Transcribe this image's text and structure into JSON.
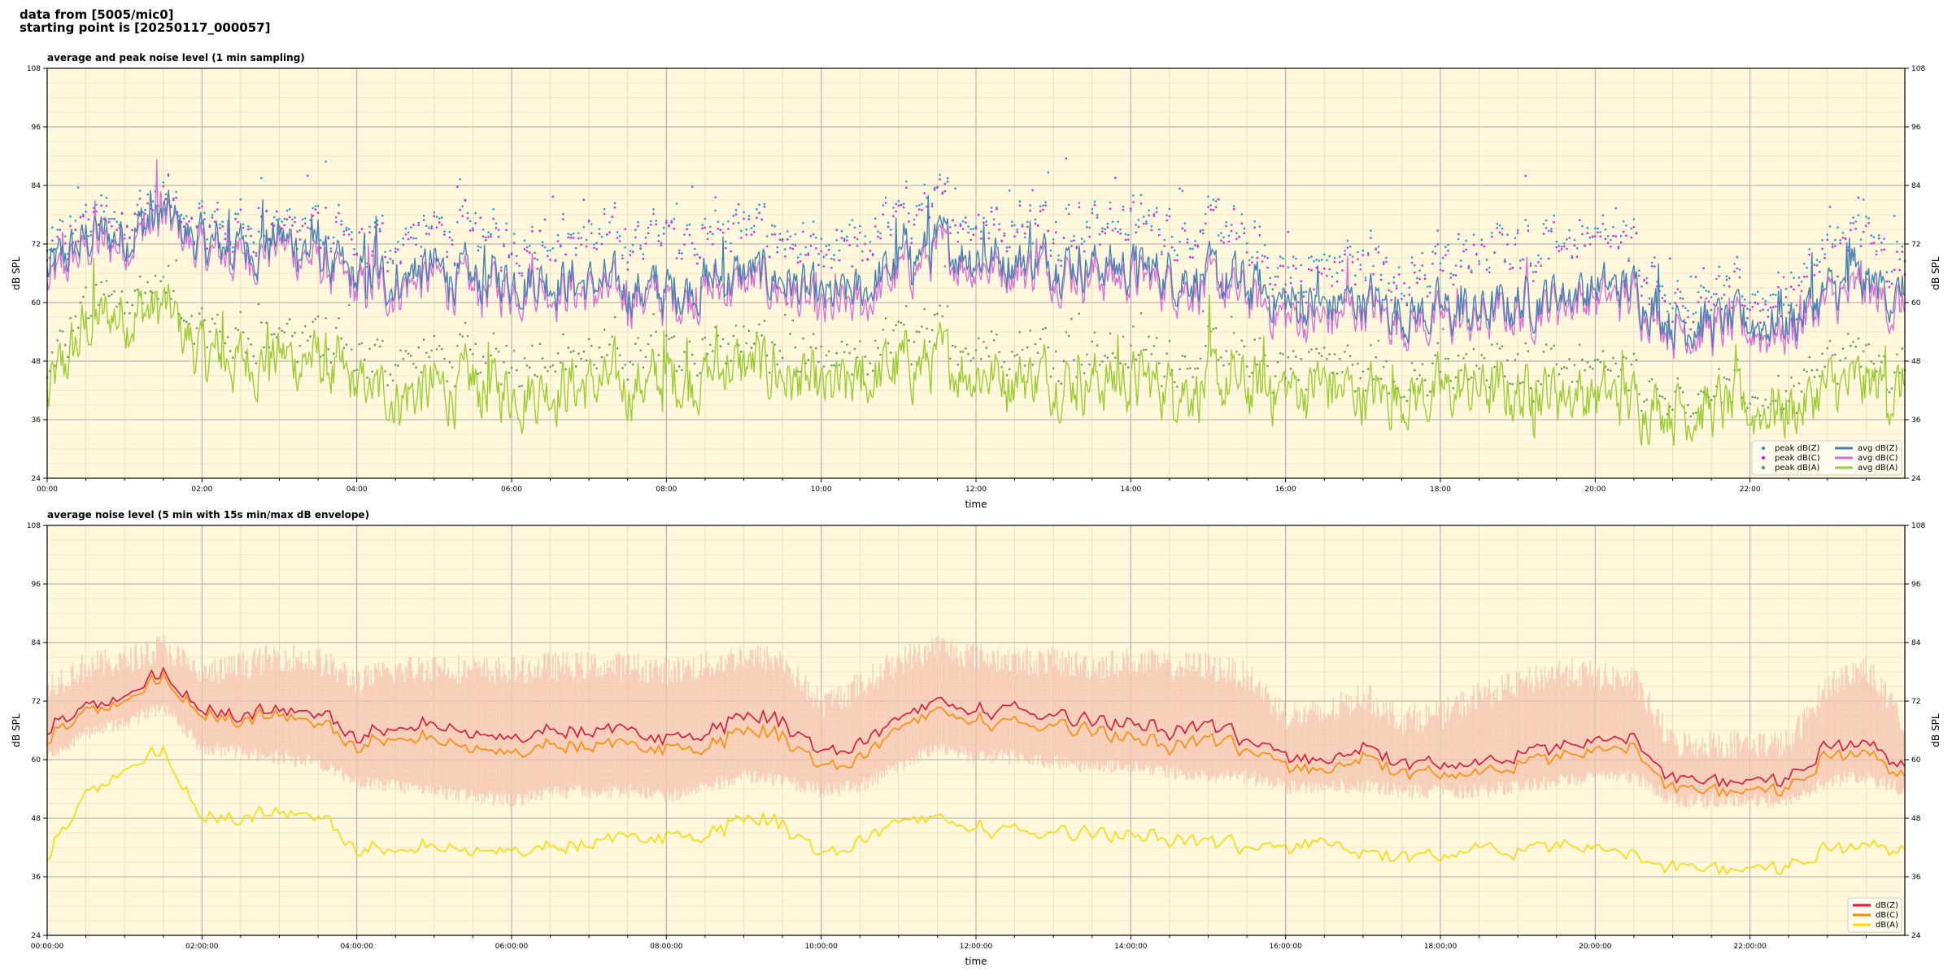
{
  "header": {
    "line1": "data from [5005/mic0]",
    "line2": "starting point is [20250117_000057]"
  },
  "colors": {
    "background": "#fff8dc",
    "peak_z": "#1f9bd7",
    "peak_c": "#e020e0",
    "peak_a": "#5c9c5c",
    "avg_z": "#4682b4",
    "avg_c": "#da70d6",
    "avg_a": "#9acd32",
    "db_z": "#dc143c",
    "db_c": "#ff8c00",
    "db_a": "#ffd700",
    "envelope": "#f4c2b0"
  },
  "chart_data": [
    {
      "type": "line",
      "title": "average and peak noise level (1 min sampling)",
      "xlabel": "time",
      "ylabel": "dB SPL",
      "ylim": [
        24,
        108
      ],
      "xlim_hours": [
        0,
        24
      ],
      "yticks": [
        24,
        36,
        48,
        60,
        72,
        84,
        96,
        108
      ],
      "xtick_labels": [
        "00:00",
        "02:00",
        "04:00",
        "06:00",
        "08:00",
        "10:00",
        "12:00",
        "14:00",
        "16:00",
        "18:00",
        "20:00",
        "22:00"
      ],
      "grid": true,
      "legend_position": "bottom-right",
      "x": [
        "00:00",
        "00:30",
        "01:00",
        "01:30",
        "02:00",
        "02:30",
        "03:00",
        "03:30",
        "04:00",
        "04:30",
        "05:00",
        "05:30",
        "06:00",
        "06:30",
        "07:00",
        "07:30",
        "08:00",
        "08:30",
        "09:00",
        "09:30",
        "10:00",
        "10:30",
        "11:00",
        "11:30",
        "12:00",
        "12:30",
        "13:00",
        "13:30",
        "14:00",
        "14:30",
        "15:00",
        "15:30",
        "16:00",
        "16:30",
        "17:00",
        "17:30",
        "18:00",
        "18:30",
        "19:00",
        "19:30",
        "20:00",
        "20:30",
        "21:00",
        "21:30",
        "22:00",
        "22:30",
        "23:00",
        "23:30",
        "24:00"
      ],
      "series": [
        {
          "name": "avg dB(Z)",
          "color_key": "avg_z",
          "values": [
            66,
            73,
            74,
            78,
            72,
            71,
            73,
            70,
            64,
            65,
            67,
            64,
            65,
            65,
            64,
            63,
            62,
            64,
            66,
            65,
            60,
            62,
            68,
            72,
            70,
            69,
            69,
            68,
            67,
            66,
            65,
            63,
            60,
            59,
            61,
            58,
            58,
            58,
            60,
            62,
            63,
            63,
            56,
            56,
            56,
            56,
            62,
            64,
            61
          ]
        },
        {
          "name": "avg dB(C)",
          "color_key": "avg_c",
          "values": [
            63,
            71,
            72,
            77,
            70,
            69,
            72,
            68,
            62,
            63,
            65,
            62,
            63,
            63,
            62,
            61,
            60,
            62,
            64,
            63,
            57,
            59,
            66,
            70,
            68,
            67,
            67,
            66,
            65,
            64,
            63,
            61,
            57,
            56,
            59,
            56,
            56,
            56,
            58,
            60,
            61,
            61,
            55,
            54,
            54,
            54,
            60,
            62,
            58
          ]
        },
        {
          "name": "avg dB(A)",
          "color_key": "avg_a",
          "values": [
            40,
            55,
            58,
            59,
            49,
            48,
            49,
            48,
            42,
            41,
            42,
            42,
            42,
            43,
            43,
            43,
            44,
            45,
            47,
            45,
            41,
            43,
            47,
            48,
            46,
            45,
            45,
            44,
            44,
            43,
            43,
            42,
            42,
            43,
            41,
            41,
            41,
            42,
            41,
            42,
            41,
            40,
            39,
            38,
            38,
            38,
            42,
            43,
            42
          ]
        },
        {
          "name": "peak dB(Z)",
          "color_key": "peak_z",
          "values": [
            70,
            77,
            78,
            82,
            76,
            76,
            77,
            76,
            72,
            73,
            75,
            74,
            73,
            74,
            74,
            73,
            74,
            75,
            76,
            74,
            68,
            72,
            78,
            80,
            78,
            77,
            77,
            77,
            77,
            76,
            75,
            73,
            66,
            67,
            70,
            66,
            68,
            70,
            72,
            74,
            74,
            72,
            62,
            62,
            62,
            62,
            70,
            74,
            68
          ]
        },
        {
          "name": "peak dB(C)",
          "color_key": "peak_c",
          "values": [
            68,
            76,
            77,
            81,
            75,
            75,
            76,
            75,
            71,
            72,
            74,
            73,
            72,
            73,
            73,
            72,
            73,
            74,
            75,
            73,
            66,
            71,
            77,
            79,
            77,
            76,
            76,
            76,
            76,
            75,
            74,
            72,
            64,
            65,
            69,
            65,
            66,
            69,
            71,
            73,
            73,
            71,
            60,
            60,
            60,
            60,
            69,
            73,
            66
          ]
        },
        {
          "name": "peak dB(A)",
          "color_key": "peak_a",
          "values": [
            44,
            60,
            62,
            63,
            54,
            53,
            54,
            53,
            48,
            48,
            49,
            48,
            49,
            50,
            49,
            49,
            50,
            51,
            52,
            50,
            46,
            48,
            53,
            54,
            52,
            51,
            51,
            50,
            50,
            49,
            49,
            48,
            47,
            48,
            46,
            45,
            45,
            47,
            47,
            48,
            47,
            45,
            42,
            41,
            41,
            41,
            47,
            48,
            46
          ]
        }
      ]
    },
    {
      "type": "line",
      "title": "average noise level (5 min with 15s min/max dB envelope)",
      "xlabel": "time",
      "ylabel": "dB SPL",
      "ylim": [
        24,
        108
      ],
      "xlim_hours": [
        0,
        24
      ],
      "yticks": [
        24,
        36,
        48,
        60,
        72,
        84,
        96,
        108
      ],
      "xtick_labels": [
        "00:00:00",
        "02:00:00",
        "04:00:00",
        "06:00:00",
        "08:00:00",
        "10:00:00",
        "12:00:00",
        "14:00:00",
        "16:00:00",
        "18:00:00",
        "20:00:00",
        "22:00:00"
      ],
      "grid": true,
      "legend_position": "bottom-right",
      "x": [
        "00:00",
        "00:30",
        "01:00",
        "01:30",
        "02:00",
        "02:30",
        "03:00",
        "03:30",
        "04:00",
        "04:30",
        "05:00",
        "05:30",
        "06:00",
        "06:30",
        "07:00",
        "07:30",
        "08:00",
        "08:30",
        "09:00",
        "09:30",
        "10:00",
        "10:30",
        "11:00",
        "11:30",
        "12:00",
        "12:30",
        "13:00",
        "13:30",
        "14:00",
        "14:30",
        "15:00",
        "15:30",
        "16:00",
        "16:30",
        "17:00",
        "17:30",
        "18:00",
        "18:30",
        "19:00",
        "19:30",
        "20:00",
        "20:30",
        "21:00",
        "21:30",
        "22:00",
        "22:30",
        "23:00",
        "23:30",
        "24:00"
      ],
      "series": [
        {
          "name": "dB(Z)",
          "color_key": "db_z",
          "values": [
            66,
            71,
            73,
            78,
            70,
            69,
            70,
            70,
            64,
            67,
            67,
            65,
            64,
            66,
            66,
            66,
            64,
            66,
            69,
            68,
            62,
            63,
            68,
            72,
            70,
            70,
            69,
            68,
            68,
            66,
            67,
            64,
            61,
            60,
            63,
            59,
            59,
            59,
            61,
            63,
            64,
            64,
            56,
            56,
            56,
            56,
            63,
            64,
            58
          ]
        },
        {
          "name": "dB(C)",
          "color_key": "db_c",
          "values": [
            64,
            70,
            72,
            77,
            69,
            68,
            69,
            68,
            62,
            65,
            64,
            62,
            61,
            63,
            63,
            63,
            62,
            63,
            66,
            65,
            59,
            60,
            66,
            70,
            68,
            67,
            67,
            66,
            65,
            63,
            64,
            62,
            59,
            58,
            61,
            57,
            57,
            57,
            59,
            61,
            62,
            62,
            54,
            54,
            54,
            54,
            61,
            62,
            56
          ]
        },
        {
          "name": "dB(A)",
          "color_key": "db_a",
          "values": [
            40,
            53,
            58,
            62,
            48,
            48,
            49,
            49,
            41,
            42,
            42,
            41,
            41,
            42,
            43,
            44,
            44,
            45,
            48,
            47,
            41,
            43,
            47,
            48,
            46,
            45,
            45,
            45,
            45,
            44,
            43,
            42,
            42,
            44,
            41,
            40,
            40,
            42,
            41,
            43,
            42,
            40,
            38,
            38,
            38,
            38,
            42,
            43,
            41
          ]
        },
        {
          "name": "15s max envelope",
          "color_key": "envelope",
          "values": [
            74,
            78,
            79,
            82,
            76,
            78,
            80,
            79,
            75,
            77,
            78,
            77,
            77,
            78,
            78,
            78,
            77,
            78,
            80,
            79,
            70,
            74,
            79,
            82,
            80,
            79,
            79,
            78,
            79,
            78,
            78,
            76,
            68,
            68,
            72,
            67,
            68,
            72,
            74,
            77,
            76,
            75,
            62,
            62,
            62,
            62,
            74,
            78,
            66
          ]
        },
        {
          "name": "15s min envelope",
          "color_key": "envelope",
          "values": [
            62,
            67,
            69,
            72,
            64,
            63,
            62,
            61,
            57,
            56,
            55,
            54,
            53,
            55,
            55,
            55,
            54,
            56,
            58,
            57,
            55,
            56,
            60,
            64,
            62,
            62,
            61,
            60,
            60,
            59,
            58,
            58,
            56,
            56,
            56,
            55,
            55,
            55,
            56,
            57,
            58,
            58,
            53,
            53,
            53,
            53,
            57,
            58,
            55
          ]
        }
      ]
    }
  ]
}
